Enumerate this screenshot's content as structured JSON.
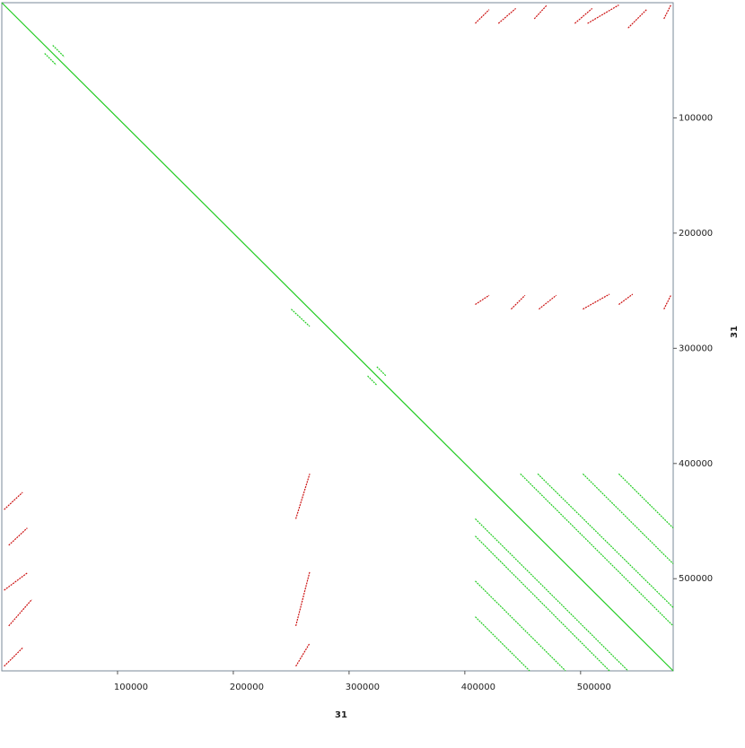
{
  "chart_data": {
    "type": "dotplot",
    "x_label": "31",
    "y_label": "31",
    "xlim": [
      0,
      580000
    ],
    "ylim": [
      0,
      580000
    ],
    "y_reversed": true,
    "xticks": [
      100000,
      200000,
      300000,
      400000,
      500000
    ],
    "yticks": [
      100000,
      200000,
      300000,
      400000,
      500000
    ],
    "series": [
      {
        "color": "#22cc22",
        "segments": [
          [
            0,
            0,
            580000,
            580000
          ],
          [
            409000,
            463000,
            525000,
            580000
          ],
          [
            463000,
            409000,
            580000,
            525000
          ],
          [
            409000,
            502000,
            487000,
            580000
          ],
          [
            502000,
            409000,
            580000,
            487000
          ],
          [
            409000,
            533000,
            456000,
            580000
          ],
          [
            533000,
            409000,
            580000,
            456000
          ],
          [
            448000,
            409000,
            580000,
            541000
          ],
          [
            409000,
            448000,
            541000,
            580000
          ],
          [
            316000,
            324000,
            324000,
            332000
          ],
          [
            324000,
            316000,
            332000,
            324000
          ],
          [
            37000,
            44000,
            47000,
            54000
          ],
          [
            44000,
            37000,
            54000,
            47000
          ],
          [
            250000,
            266000,
            266000,
            281000
          ]
        ]
      },
      {
        "color": "#cc1111",
        "segments": [
          [
            409000,
            18000,
            421000,
            6000
          ],
          [
            429000,
            18000,
            444000,
            5000
          ],
          [
            460000,
            14000,
            471000,
            2000
          ],
          [
            495000,
            18000,
            510000,
            5000
          ],
          [
            506000,
            18000,
            533000,
            2000
          ],
          [
            541000,
            22000,
            557000,
            6000
          ],
          [
            572000,
            14000,
            578000,
            2000
          ],
          [
            409000,
            262000,
            421000,
            254000
          ],
          [
            440000,
            266000,
            452000,
            254000
          ],
          [
            464000,
            266000,
            479000,
            254000
          ],
          [
            502000,
            266000,
            525000,
            253000
          ],
          [
            533000,
            262000,
            545000,
            253000
          ],
          [
            572000,
            266000,
            578000,
            254000
          ],
          [
            2000,
            440000,
            18000,
            425000
          ],
          [
            6000,
            471000,
            22000,
            456000
          ],
          [
            2000,
            510000,
            22000,
            495000
          ],
          [
            6000,
            541000,
            26000,
            518000
          ],
          [
            2000,
            576000,
            18000,
            560000
          ],
          [
            254000,
            448000,
            266000,
            409000
          ],
          [
            254000,
            541000,
            266000,
            494000
          ],
          [
            254000,
            576000,
            266000,
            556000
          ]
        ]
      }
    ]
  }
}
